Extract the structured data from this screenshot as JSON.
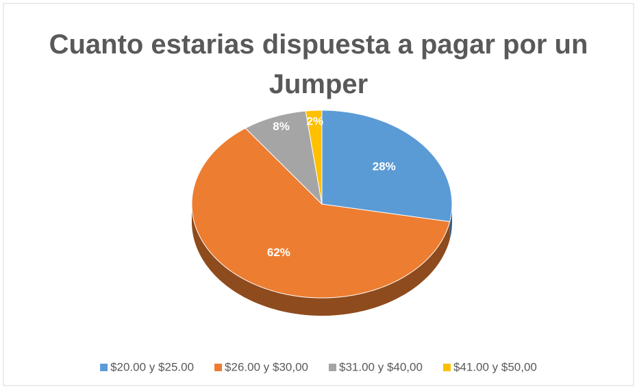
{
  "chart_data": {
    "type": "pie",
    "title": "Cuanto estarias dispuesta a pagar por un Jumper",
    "categories": [
      "$20.00 y $25.00",
      "$26.00 y $30,00",
      "$31.00 y $40,00",
      "$41.00 y $50,00"
    ],
    "values": [
      28,
      62,
      8,
      2
    ],
    "value_labels": [
      "28%",
      "62%",
      "8%",
      "2%"
    ],
    "colors": [
      "#5b9bd5",
      "#ed7d31",
      "#a5a5a5",
      "#ffc000"
    ],
    "legend": "bottom"
  }
}
